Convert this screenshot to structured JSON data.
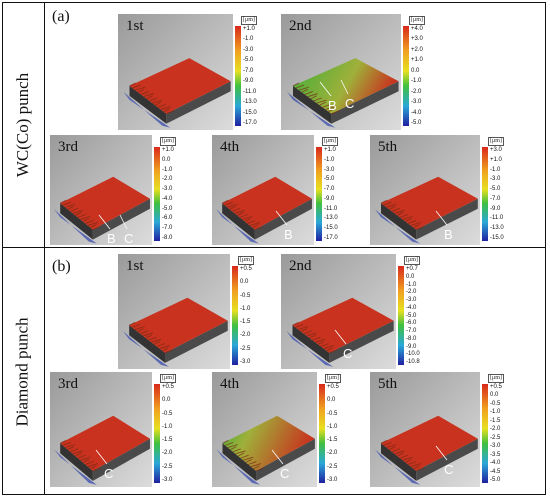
{
  "row_labels": [
    "WC(Co) punch",
    "Diamond punch"
  ],
  "subfigure_labels": [
    "(a)",
    "(b)"
  ],
  "colorbar_unit": "[μm]",
  "panels": [
    {
      "title": "1st",
      "ticks": [
        "+1.0",
        "-1.0",
        "-3.0",
        "-5.0",
        "-7.0",
        "-9.0",
        "-11.0",
        "-13.0",
        "-15.0",
        "-17.0"
      ],
      "marks": [],
      "green_fraction": 0.0
    },
    {
      "title": "2nd",
      "ticks": [
        "+4.0",
        "+3.0",
        "+2.0",
        "+1.0",
        "0.0",
        "-1.0",
        "-2.0",
        "-3.0",
        "-4.0",
        "-5.0"
      ],
      "marks": [
        "B",
        "C"
      ],
      "green_fraction": 0.6
    },
    {
      "title": "3rd",
      "ticks": [
        "+1.0",
        "0.0",
        "-1.0",
        "-2.0",
        "-3.0",
        "-4.0",
        "-5.0",
        "-6.0",
        "-7.0",
        "-8.0"
      ],
      "marks": [
        "B",
        "C"
      ],
      "green_fraction": 0.1
    },
    {
      "title": "4th",
      "ticks": [
        "+1.0",
        "-1.0",
        "-3.0",
        "-5.0",
        "-7.0",
        "-9.0",
        "-11.0",
        "-13.0",
        "-15.0",
        "-17.0"
      ],
      "marks": [
        "B"
      ],
      "green_fraction": 0.05
    },
    {
      "title": "5th",
      "ticks": [
        "+3.0",
        "+1.0",
        "-1.0",
        "-3.0",
        "-5.0",
        "-7.0",
        "-9.0",
        "-11.0",
        "-13.0",
        "-15.0"
      ],
      "marks": [
        "B"
      ],
      "green_fraction": 0.05
    },
    {
      "title": "1st",
      "ticks": [
        "+0.5",
        "0.0",
        "-0.5",
        "-1.0",
        "-1.5",
        "-2.0",
        "-2.5",
        "-3.0"
      ],
      "marks": [],
      "green_fraction": 0.0
    },
    {
      "title": "2nd",
      "ticks": [
        "+0.7",
        "0.0",
        "-1.0",
        "-2.0",
        "-3.0",
        "-4.0",
        "-5.0",
        "-6.0",
        "-7.0",
        "-8.0",
        "-9.0",
        "-10.0",
        "-10.8"
      ],
      "marks": [
        "C"
      ],
      "green_fraction": 0.0
    },
    {
      "title": "3rd",
      "ticks": [
        "+0.5",
        "0.0",
        "-0.5",
        "-1.0",
        "-1.5",
        "-2.0",
        "-2.5",
        "-3.0"
      ],
      "marks": [
        "C"
      ],
      "green_fraction": 0.0
    },
    {
      "title": "4th",
      "ticks": [
        "+0.5",
        "0.0",
        "-0.5",
        "-1.0",
        "-1.5",
        "-2.0",
        "-2.5",
        "-3.0"
      ],
      "marks": [
        "C"
      ],
      "green_fraction": 0.35
    },
    {
      "title": "5th",
      "ticks": [
        "+0.5",
        "0.0",
        "-0.5",
        "-1.0",
        "-1.5",
        "-2.0",
        "-2.5",
        "-3.0",
        "-3.5",
        "-4.0",
        "-4.5",
        "-5.0"
      ],
      "marks": [
        "C"
      ],
      "green_fraction": 0.05
    }
  ],
  "colors": {
    "surface_red": "#c8321e",
    "surface_green": "#3fae3a",
    "base_blue": "#4f5fb0",
    "side_gray": "#4a4a4a"
  }
}
